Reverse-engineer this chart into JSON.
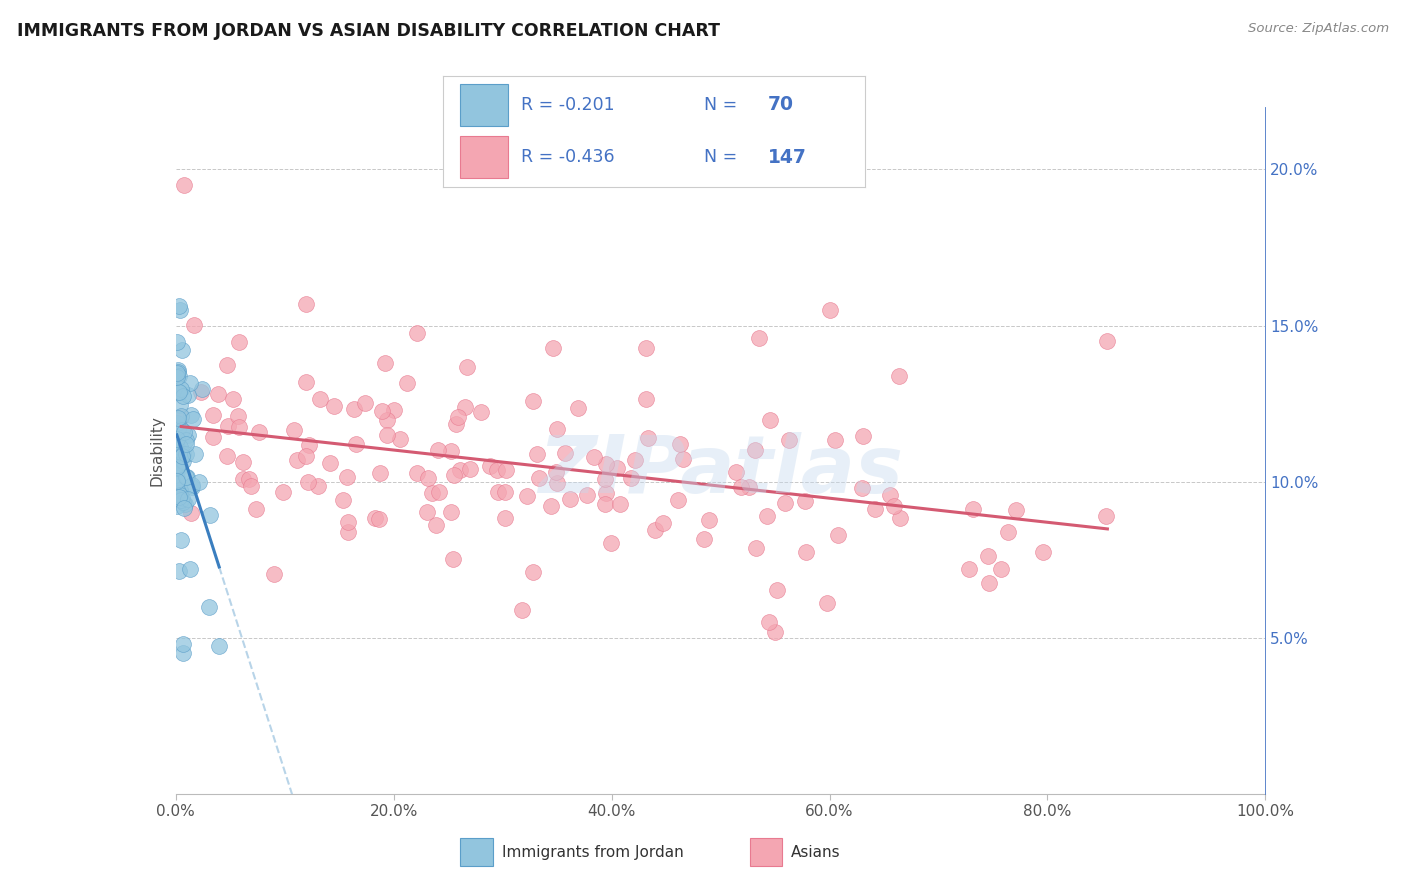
{
  "title": "IMMIGRANTS FROM JORDAN VS ASIAN DISABILITY CORRELATION CHART",
  "source": "Source: ZipAtlas.com",
  "watermark": "ZIPatlas",
  "ylabel": "Disability",
  "xlim": [
    0.0,
    1.0
  ],
  "ylim": [
    0.0,
    0.22
  ],
  "xticks": [
    0.0,
    0.2,
    0.4,
    0.6,
    0.8,
    1.0
  ],
  "xticklabels": [
    "0.0%",
    "20.0%",
    "40.0%",
    "60.0%",
    "80.0%",
    "100.0%"
  ],
  "yticks_right": [
    0.05,
    0.1,
    0.15,
    0.2
  ],
  "yticklabels_right": [
    "5.0%",
    "10.0%",
    "15.0%",
    "20.0%"
  ],
  "blue_color": "#92c5de",
  "blue_edge_color": "#5b9ec9",
  "pink_color": "#f4a6b2",
  "pink_edge_color": "#e87a90",
  "blue_line_color": "#3a7ebf",
  "pink_line_color": "#d45a72",
  "blue_dashed_color": "#b8d4e8",
  "background_color": "#ffffff",
  "grid_color": "#c8c8c8",
  "title_color": "#1a1a1a",
  "right_axis_color": "#4472c4",
  "legend_text_color": "#4472c4",
  "bottom_label_color": "#333333",
  "source_color": "#888888"
}
